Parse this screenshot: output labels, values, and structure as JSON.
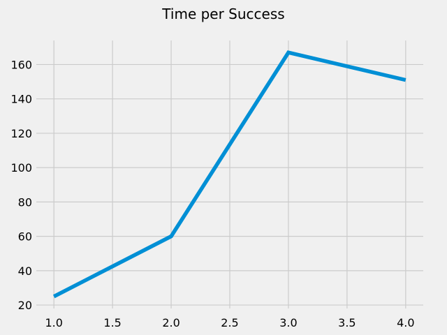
{
  "chart_data": {
    "type": "line",
    "title": "Time per Success",
    "xlabel": "",
    "ylabel": "",
    "x": [
      1.0,
      2.0,
      3.0,
      4.0
    ],
    "series": [
      {
        "values": [
          25,
          60,
          167,
          151
        ],
        "color": "#008fd5"
      }
    ],
    "xlim": [
      0.85,
      4.15
    ],
    "ylim": [
      18,
      174
    ],
    "xticks": [
      1.0,
      1.5,
      2.0,
      2.5,
      3.0,
      3.5,
      4.0
    ],
    "xtick_labels": [
      "1.0",
      "1.5",
      "2.0",
      "2.5",
      "3.0",
      "3.5",
      "4.0"
    ],
    "yticks": [
      20,
      40,
      60,
      80,
      100,
      120,
      140,
      160
    ],
    "ytick_labels": [
      "20",
      "40",
      "60",
      "80",
      "100",
      "120",
      "140",
      "160"
    ],
    "grid": true,
    "legend": "none",
    "colors": {
      "background": "#f0f0f0",
      "grid": "#cbcbcb",
      "line": "#008fd5"
    }
  }
}
